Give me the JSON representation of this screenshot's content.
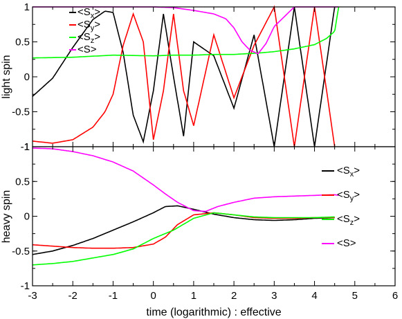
{
  "chart_data": [
    {
      "type": "line",
      "panel": "top",
      "ylabel": "light spin",
      "xlim": [
        -3,
        6
      ],
      "ylim": [
        -1,
        1
      ],
      "yticks": [
        "-1",
        "-0.5",
        "0",
        "0.5",
        "1"
      ],
      "legend_position": "top-left",
      "series": [
        {
          "name": "<Sx>",
          "color": "#000000",
          "x": [
            -3.0,
            -2.5,
            -2.0,
            -1.5,
            -1.2,
            -1.0,
            -0.75,
            -0.5,
            -0.25,
            0.0,
            0.25,
            0.5,
            0.75,
            1.0,
            1.5,
            2.0,
            2.5,
            3.0,
            3.5,
            4.0,
            4.5
          ],
          "y": [
            -0.28,
            -0.02,
            0.42,
            0.82,
            0.94,
            0.92,
            0.35,
            -0.55,
            -0.93,
            -0.2,
            0.9,
            0.0,
            -0.85,
            0.5,
            0.3,
            -0.45,
            0.6,
            -1.0,
            1.0,
            -1.0,
            1.0
          ]
        },
        {
          "name": "<Sy>",
          "color": "#ff0000",
          "x": [
            -3.0,
            -2.5,
            -2.0,
            -1.5,
            -1.2,
            -1.0,
            -0.75,
            -0.5,
            -0.25,
            0.0,
            0.25,
            0.5,
            0.75,
            1.0,
            1.5,
            2.0,
            2.5,
            3.0,
            3.5,
            4.0,
            4.5
          ],
          "y": [
            -0.92,
            -0.95,
            -0.9,
            -0.72,
            -0.5,
            -0.25,
            0.45,
            0.9,
            0.5,
            -0.9,
            -0.2,
            0.9,
            -0.2,
            -0.7,
            0.6,
            -0.3,
            0.45,
            1.0,
            -1.0,
            1.0,
            -1.0
          ]
        },
        {
          "name": "<Sz>",
          "color": "#00ff00",
          "x": [
            -3.0,
            -2.0,
            -1.0,
            0.0,
            0.5,
            1.0,
            1.5,
            2.0,
            2.3,
            2.6,
            3.0,
            3.5,
            4.0,
            4.3,
            4.5,
            4.6
          ],
          "y": [
            0.27,
            0.28,
            0.31,
            0.3,
            0.31,
            0.31,
            0.32,
            0.32,
            0.33,
            0.34,
            0.36,
            0.4,
            0.46,
            0.55,
            0.65,
            1.0
          ]
        },
        {
          "name": "<S>",
          "color": "#ff00ff",
          "x": [
            -3.0,
            -2.0,
            -1.0,
            0.0,
            0.5,
            1.0,
            1.5,
            1.8,
            2.0,
            2.2,
            2.4,
            2.6,
            2.8,
            3.0,
            3.5,
            4.0,
            4.5,
            4.6
          ],
          "y": [
            1.0,
            1.0,
            1.0,
            1.0,
            0.99,
            0.95,
            0.9,
            0.83,
            0.7,
            0.5,
            0.38,
            0.33,
            0.48,
            0.72,
            1.0,
            1.0,
            1.0,
            1.0
          ]
        }
      ]
    },
    {
      "type": "line",
      "panel": "bottom",
      "xlabel": "time (logarithmic) : effective",
      "ylabel": "heavy spin",
      "xlim": [
        -3,
        6
      ],
      "ylim": [
        -1,
        1
      ],
      "xticks": [
        "-3",
        "-2",
        "-1",
        "0",
        "1",
        "2",
        "3",
        "4",
        "5",
        "6"
      ],
      "yticks": [
        "-1",
        "-0.5",
        "0",
        "0.5",
        "1"
      ],
      "legend_position": "right",
      "series": [
        {
          "name": "<Sx>",
          "color": "#000000",
          "x": [
            -3.0,
            -2.5,
            -2.0,
            -1.5,
            -1.0,
            -0.5,
            0.0,
            0.3,
            0.6,
            1.0,
            1.5,
            2.0,
            2.5,
            3.0,
            3.5,
            4.0,
            4.5
          ],
          "y": [
            -0.55,
            -0.5,
            -0.42,
            -0.32,
            -0.2,
            -0.08,
            0.05,
            0.14,
            0.15,
            0.1,
            0.03,
            -0.02,
            -0.05,
            -0.06,
            -0.05,
            -0.03,
            -0.02
          ]
        },
        {
          "name": "<Sy>",
          "color": "#ff0000",
          "x": [
            -3.0,
            -2.5,
            -2.0,
            -1.5,
            -1.0,
            -0.5,
            0.0,
            0.3,
            0.6,
            1.0,
            1.5,
            2.0,
            2.5,
            3.0,
            3.5,
            4.0,
            4.5
          ],
          "y": [
            -0.41,
            -0.43,
            -0.45,
            -0.46,
            -0.46,
            -0.45,
            -0.4,
            -0.3,
            -0.12,
            0.02,
            0.05,
            0.02,
            -0.02,
            -0.03,
            -0.03,
            -0.02,
            -0.02
          ]
        },
        {
          "name": "<Sz>",
          "color": "#00ff00",
          "x": [
            -3.0,
            -2.5,
            -2.0,
            -1.5,
            -1.0,
            -0.5,
            0.0,
            0.5,
            1.0,
            1.5,
            2.0,
            2.5,
            3.0,
            3.5,
            4.0,
            4.5
          ],
          "y": [
            -0.7,
            -0.68,
            -0.65,
            -0.6,
            -0.55,
            -0.47,
            -0.32,
            -0.2,
            -0.03,
            0.05,
            0.02,
            -0.01,
            -0.02,
            -0.02,
            -0.02,
            -0.01
          ]
        },
        {
          "name": "<S>",
          "color": "#ff00ff",
          "x": [
            -3.0,
            -2.5,
            -2.0,
            -1.5,
            -1.0,
            -0.5,
            0.0,
            0.3,
            0.6,
            1.0,
            1.3,
            1.6,
            2.0,
            2.5,
            3.0,
            3.5,
            4.0,
            4.5,
            4.6
          ],
          "y": [
            0.98,
            0.97,
            0.93,
            0.87,
            0.78,
            0.65,
            0.45,
            0.32,
            0.2,
            0.08,
            0.07,
            0.14,
            0.2,
            0.26,
            0.28,
            0.29,
            0.3,
            0.31,
            0.3
          ]
        }
      ]
    }
  ]
}
